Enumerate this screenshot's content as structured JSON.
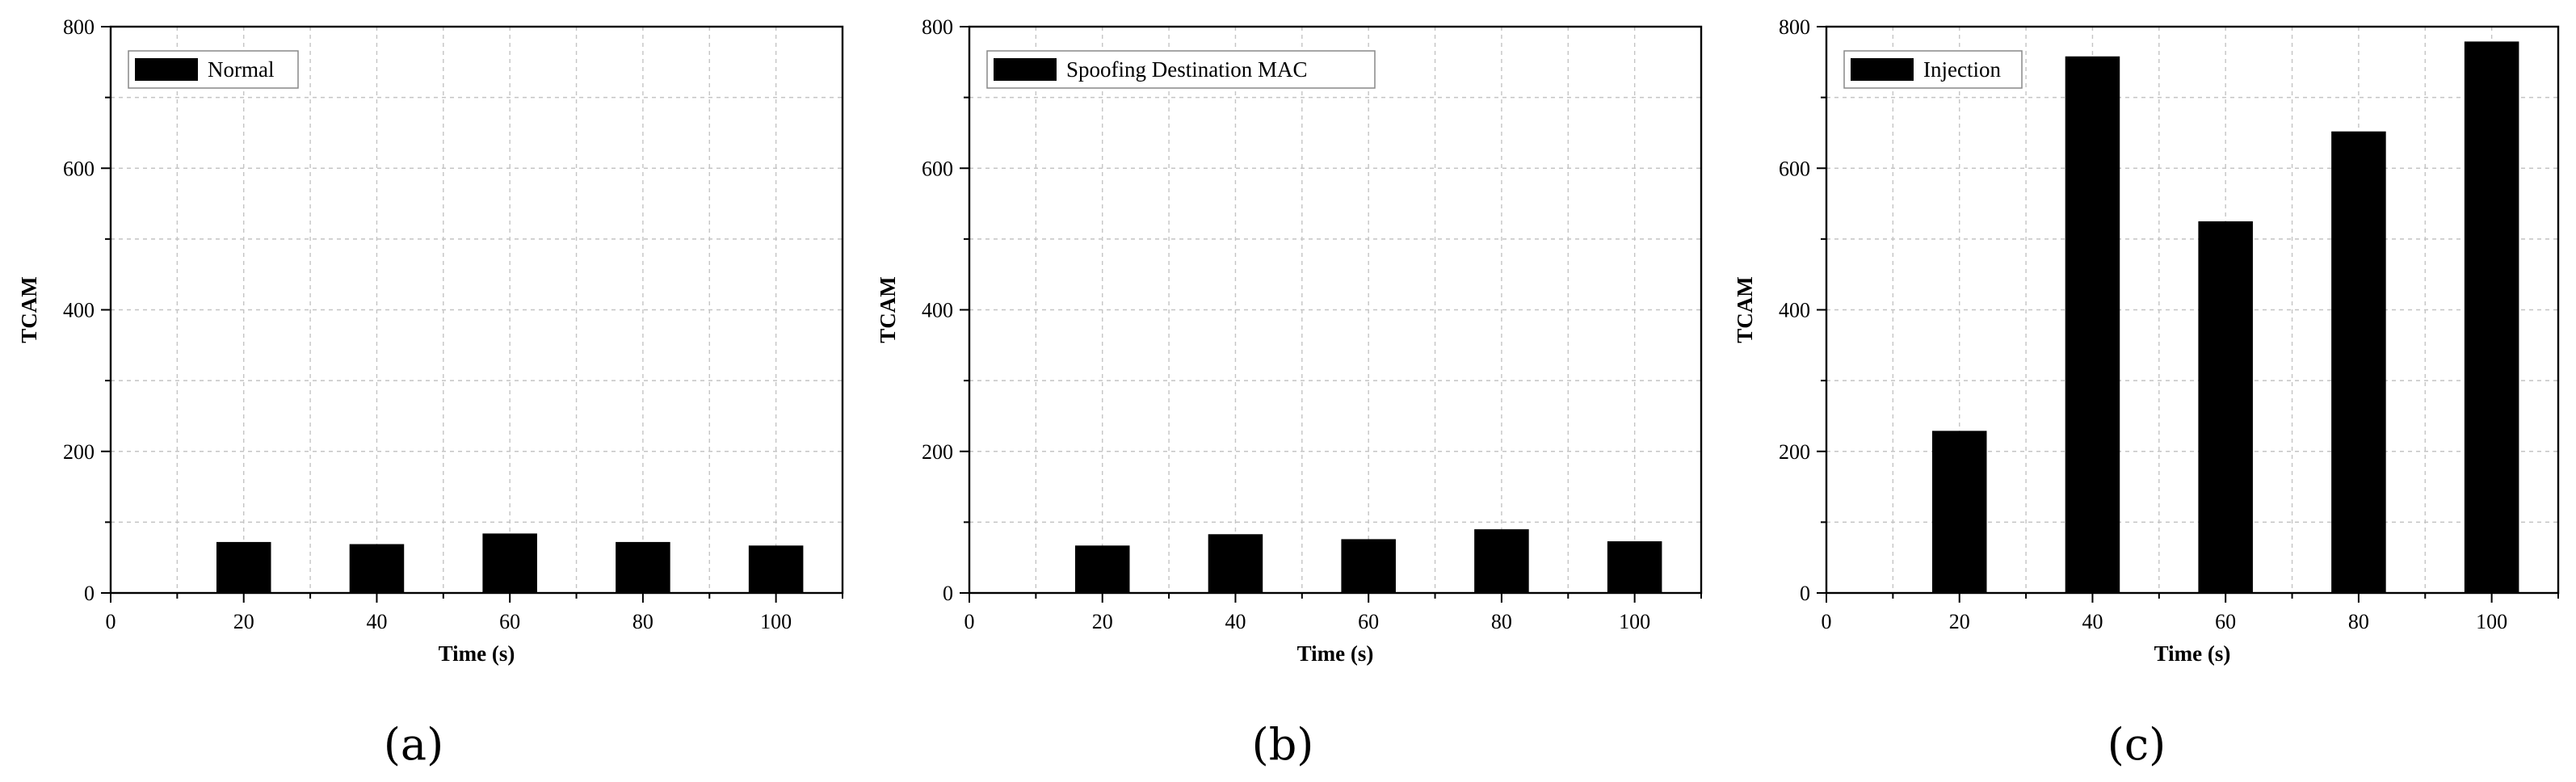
{
  "chart_data": [
    {
      "type": "bar",
      "panel_label": "(a)",
      "legend": "Normal",
      "categories": [
        "20",
        "40",
        "60",
        "80",
        "100"
      ],
      "x": [
        20,
        40,
        60,
        80,
        100
      ],
      "values": [
        72,
        69,
        84,
        72,
        67
      ],
      "xlabel": "Time (s)",
      "ylabel": "TCAM",
      "xlim": [
        0,
        110
      ],
      "ylim": [
        0,
        800
      ],
      "xticks": [
        0,
        20,
        40,
        60,
        80,
        100
      ],
      "yticks": [
        0,
        200,
        400,
        600,
        800
      ],
      "grid": true,
      "legend_position": "top-left",
      "bar_color": "#000000"
    },
    {
      "type": "bar",
      "panel_label": "(b)",
      "legend": "Spoofing Destination MAC",
      "categories": [
        "20",
        "40",
        "60",
        "80",
        "100"
      ],
      "x": [
        20,
        40,
        60,
        80,
        100
      ],
      "values": [
        67,
        83,
        76,
        90,
        73
      ],
      "xlabel": "Time (s)",
      "ylabel": "TCAM",
      "xlim": [
        0,
        110
      ],
      "ylim": [
        0,
        800
      ],
      "xticks": [
        0,
        20,
        40,
        60,
        80,
        100
      ],
      "yticks": [
        0,
        200,
        400,
        600,
        800
      ],
      "grid": true,
      "legend_position": "top-left",
      "bar_color": "#000000"
    },
    {
      "type": "bar",
      "panel_label": "(c)",
      "legend": "Injection",
      "categories": [
        "20",
        "40",
        "60",
        "80",
        "100"
      ],
      "x": [
        20,
        40,
        60,
        80,
        100
      ],
      "values": [
        229,
        758,
        525,
        652,
        779
      ],
      "xlabel": "Time (s)",
      "ylabel": "TCAM",
      "xlim": [
        0,
        110
      ],
      "ylim": [
        0,
        800
      ],
      "xticks": [
        0,
        20,
        40,
        60,
        80,
        100
      ],
      "yticks": [
        0,
        200,
        400,
        600,
        800
      ],
      "grid": true,
      "legend_position": "top-left",
      "bar_color": "#000000"
    }
  ]
}
